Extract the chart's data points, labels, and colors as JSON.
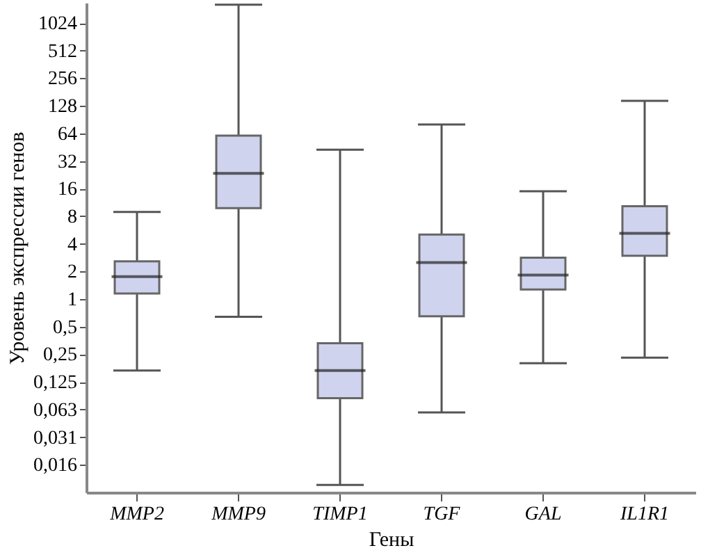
{
  "chart_data": {
    "type": "box",
    "xlabel": "Гены",
    "ylabel": "Уровень экспрессии генов",
    "categories": [
      "MMP2",
      "MMP9",
      "TIMP1",
      "TGF",
      "GAL",
      "IL1R1"
    ],
    "boxes": [
      {
        "low": 0.166,
        "q1": 1.15,
        "median": 1.76,
        "q3": 2.58,
        "high": 8.9
      },
      {
        "low": 0.64,
        "q1": 9.8,
        "median": 23.5,
        "q3": 60.6,
        "high": 1620
      },
      {
        "low": 0.0094,
        "q1": 0.083,
        "median": 0.166,
        "q3": 0.33,
        "high": 42.5
      },
      {
        "low": 0.058,
        "q1": 0.65,
        "median": 2.5,
        "q3": 5.05,
        "high": 80
      },
      {
        "low": 0.2,
        "q1": 1.27,
        "median": 1.83,
        "q3": 2.83,
        "high": 15
      },
      {
        "low": 0.23,
        "q1": 2.97,
        "median": 5.2,
        "q3": 10.3,
        "high": 145
      }
    ],
    "color": "#cfd3ee",
    "log": "y",
    "ylim": [
      0.0078,
      1700
    ],
    "yticks": [
      {
        "value": 0.015625,
        "label": "0,016"
      },
      {
        "value": 0.03125,
        "label": "0,031"
      },
      {
        "value": 0.0625,
        "label": "0,063"
      },
      {
        "value": 0.125,
        "label": "0,125"
      },
      {
        "value": 0.25,
        "label": "0,25"
      },
      {
        "value": 0.5,
        "label": "0,5"
      },
      1,
      2,
      4,
      8,
      16,
      32,
      64,
      128,
      256,
      512,
      1024
    ],
    "grid": false
  }
}
